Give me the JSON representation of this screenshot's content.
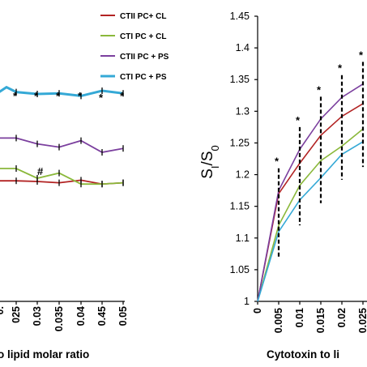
{
  "chart_data": [
    {
      "type": "line",
      "panel": "left",
      "xlabel_visible": "o lipid molar ratio",
      "x_tick_labels": [
        "025",
        "0.03",
        "0.035",
        "0.04",
        "0.45",
        "0.05"
      ],
      "x_first_char": "0.",
      "legend": [
        "CTII PC+ CL",
        "CTI PC + CL",
        "CTII PC + PS",
        "CTI PC + PS"
      ],
      "legend_placement": "top-right",
      "series": [
        {
          "name": "CTII PC+ CL",
          "color": "#b22222",
          "values": [
            1.186,
            1.185,
            1.183,
            1.187,
            1.181,
            1.183
          ]
        },
        {
          "name": "CTI PC + CL",
          "color": "#8ab83a",
          "values": [
            1.205,
            1.19,
            1.198,
            1.181,
            1.181,
            1.183
          ]
        },
        {
          "name": "CTII PC + PS",
          "color": "#7b3f9e",
          "values": [
            1.252,
            1.243,
            1.238,
            1.248,
            1.23,
            1.236
          ]
        },
        {
          "name": "CTI PC + PS",
          "color": "#35a9d6",
          "values": [
            1.323,
            1.32,
            1.321,
            1.317,
            1.325,
            1.321
          ]
        }
      ],
      "annotations": [
        "*",
        "*",
        "*",
        "*",
        "*",
        "*",
        "#"
      ],
      "grid": false
    },
    {
      "type": "line",
      "panel": "right",
      "ylabel": "SI/S0",
      "ylim": [
        1,
        1.45
      ],
      "y_ticks": [
        "1",
        "1.05",
        "1.1",
        "1.15",
        "1.2",
        "1.25",
        "1.3",
        "1.35",
        "1.4",
        "1.45"
      ],
      "xlabel_visible": "Cytotoxin to li",
      "x_tick_labels": [
        "0",
        "0.005",
        "0.01",
        "0.015",
        "0.02",
        "0.025"
      ],
      "x": [
        0,
        0.005,
        0.01,
        0.015,
        0.02,
        0.025
      ],
      "series": [
        {
          "name": "CTII PC+ CL",
          "color": "#b22222",
          "values": [
            1.0,
            1.17,
            1.218,
            1.262,
            1.292,
            1.312
          ]
        },
        {
          "name": "CTI PC + CL",
          "color": "#8ab83a",
          "values": [
            1.0,
            1.12,
            1.183,
            1.222,
            1.245,
            1.272
          ]
        },
        {
          "name": "CTII PC + PS",
          "color": "#7b3f9e",
          "values": [
            1.0,
            1.175,
            1.24,
            1.288,
            1.322,
            1.343
          ]
        },
        {
          "name": "CTI PC + PS",
          "color": "#35a9d6",
          "values": [
            1.0,
            1.11,
            1.16,
            1.195,
            1.232,
            1.252
          ]
        }
      ],
      "error_bars_at": [
        0.005,
        0.01,
        0.015,
        0.02,
        0.025
      ],
      "annotations": [
        "*",
        "*",
        "*",
        "*",
        "*"
      ],
      "grid": false
    }
  ]
}
